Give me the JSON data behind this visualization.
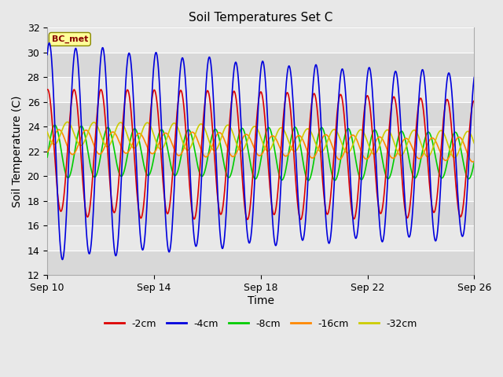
{
  "title": "Soil Temperatures Set C",
  "xlabel": "Time",
  "ylabel": "Soil Temperature (C)",
  "ylim": [
    12,
    32
  ],
  "xlim_days": [
    0,
    16
  ],
  "xtick_labels": [
    "Sep 10",
    "Sep 14",
    "Sep 18",
    "Sep 22",
    "Sep 26"
  ],
  "xtick_positions": [
    0,
    4,
    8,
    12,
    16
  ],
  "ytick_positions": [
    12,
    14,
    16,
    18,
    20,
    22,
    24,
    26,
    28,
    30,
    32
  ],
  "legend_entries": [
    "-2cm",
    "-4cm",
    "-8cm",
    "-16cm",
    "-32cm"
  ],
  "line_colors": [
    "#dd0000",
    "#0000dd",
    "#00cc00",
    "#ff8800",
    "#cccc00"
  ],
  "bg_color": "#e8e8e8",
  "plot_bg_color": "#e8e8e8",
  "annotation_text": "BC_met",
  "annotation_color": "#880000",
  "annotation_bg": "#ffff99",
  "annotation_border": "#888800",
  "band_light": "#e8e8e8",
  "band_dark": "#d8d8d8"
}
